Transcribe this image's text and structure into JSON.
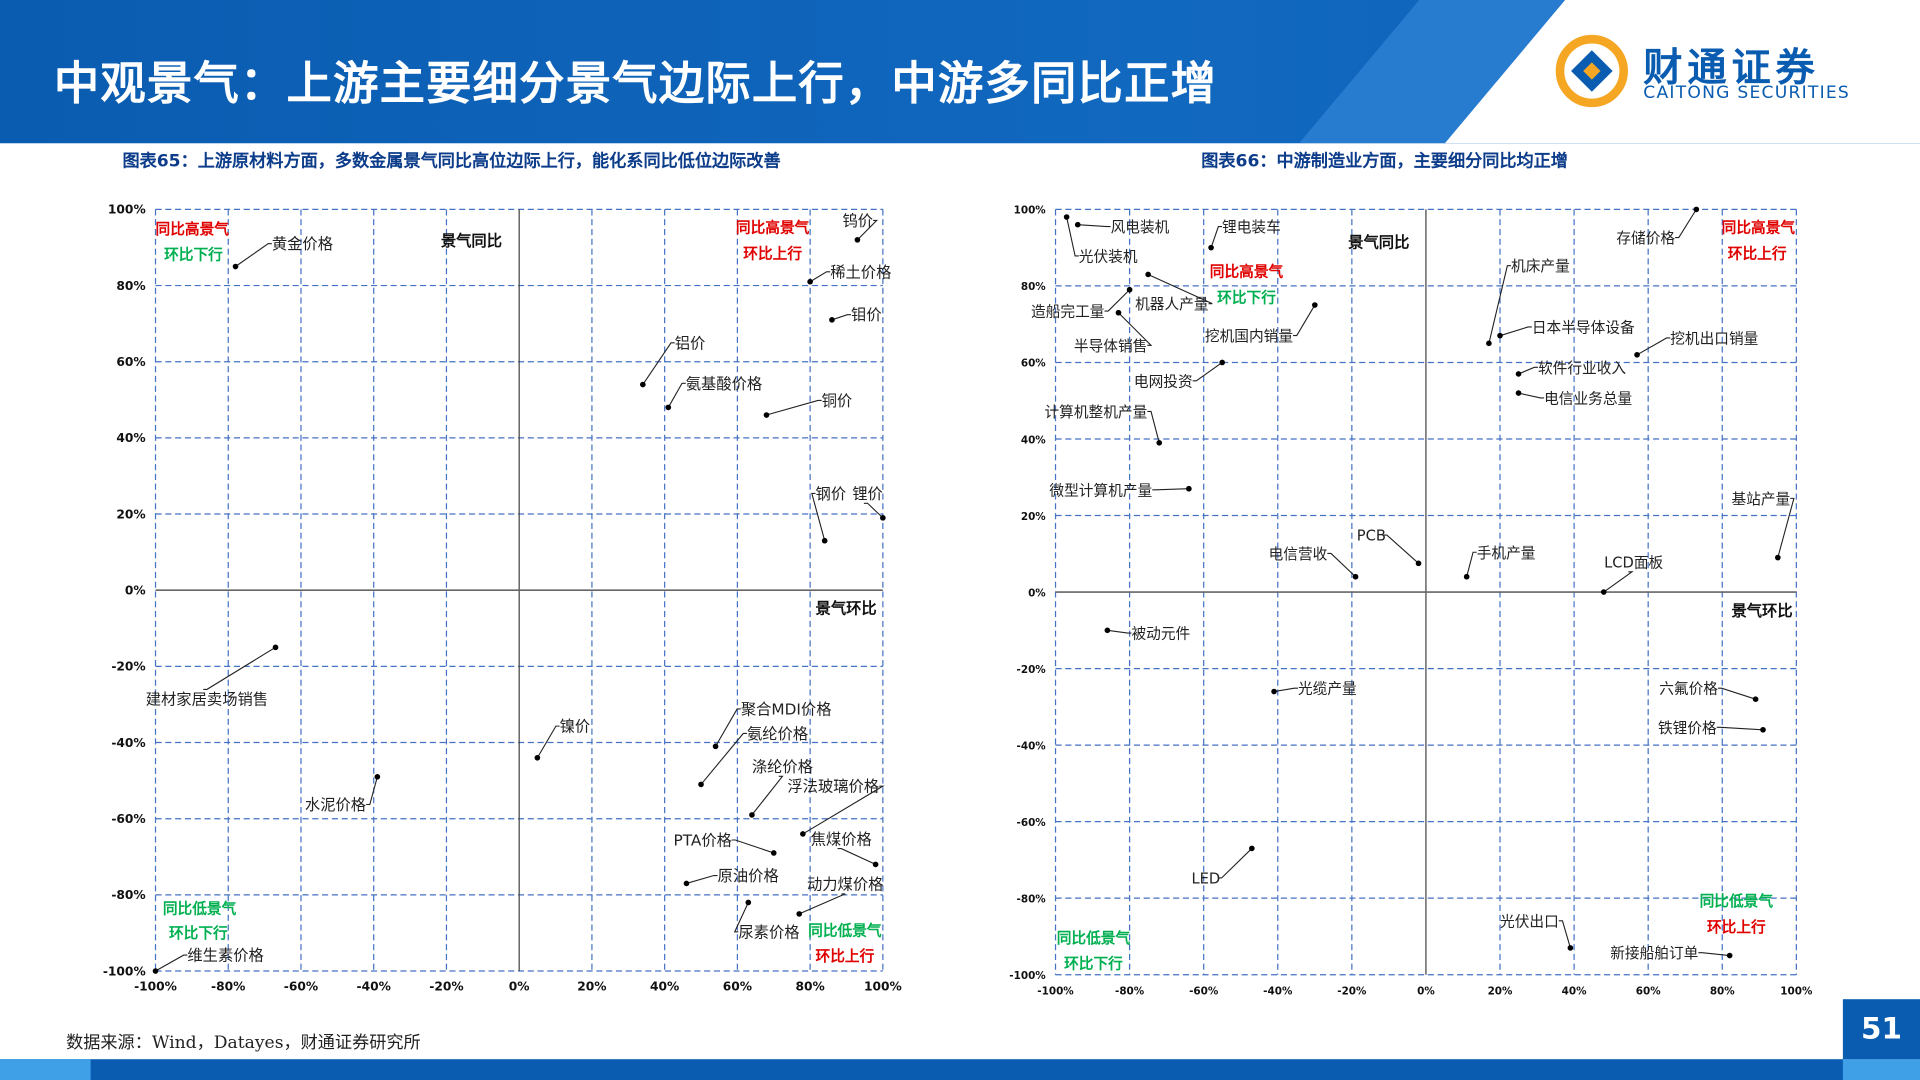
{
  "header": {
    "title": "中观景气：上游主要细分景气边际上行，中游多同比正增",
    "logo_cn": "财通证券",
    "logo_en": "CAITONG SECURITIES"
  },
  "colors": {
    "brand": "#0a5cb0",
    "grid": "#4472c4",
    "red": "#e00000",
    "green": "#00b050"
  },
  "source": "数据来源：Wind，Datayes，财通证券研究所",
  "page_number": "51",
  "chart_data": [
    {
      "type": "scatter",
      "title": "图表65：上游原材料方面，多数金属景气同比高位边际上行，能化系同比低位边际改善",
      "ylabel": "景气同比",
      "xlabel": "景气环比",
      "xlim": [
        -100,
        100
      ],
      "ylim": [
        -100,
        100
      ],
      "xticks": [
        "-100%",
        "-80%",
        "-60%",
        "-40%",
        "-20%",
        "0%",
        "20%",
        "40%",
        "60%",
        "80%",
        "100%"
      ],
      "yticks": [
        "100%",
        "80%",
        "60%",
        "40%",
        "20%",
        "0%",
        "-20%",
        "-40%",
        "-60%",
        "-80%",
        "-100%"
      ],
      "grid": true,
      "quadrants": {
        "top_left": [
          "同比高景气",
          "环比下行"
        ],
        "top_right": [
          "同比高景气",
          "环比上行"
        ],
        "bottom_left": [
          "同比低景气",
          "环比下行"
        ],
        "bottom_right": [
          "同比低景气",
          "环比上行"
        ]
      },
      "points": [
        {
          "label": "黄金价格",
          "x": -78,
          "y": 85
        },
        {
          "label": "钨价",
          "x": 93,
          "y": 92
        },
        {
          "label": "稀土价格",
          "x": 80,
          "y": 81
        },
        {
          "label": "钼价",
          "x": 86,
          "y": 71
        },
        {
          "label": "铝价",
          "x": 34,
          "y": 54
        },
        {
          "label": "氨基酸价格",
          "x": 41,
          "y": 48
        },
        {
          "label": "铜价",
          "x": 68,
          "y": 46
        },
        {
          "label": "钢价",
          "x": 84,
          "y": 13
        },
        {
          "label": "锂价",
          "x": 100,
          "y": 19
        },
        {
          "label": "建材家居卖场销售",
          "x": -67,
          "y": -15
        },
        {
          "label": "水泥价格",
          "x": -39,
          "y": -49
        },
        {
          "label": "镍价",
          "x": 5,
          "y": -44
        },
        {
          "label": "聚合MDI价格",
          "x": 54,
          "y": -41
        },
        {
          "label": "氨纶价格",
          "x": 50,
          "y": -51
        },
        {
          "label": "涤纶价格",
          "x": 64,
          "y": -59
        },
        {
          "label": "浮法玻璃价格",
          "x": 78,
          "y": -64
        },
        {
          "label": "焦煤价格",
          "x": 98,
          "y": -72
        },
        {
          "label": "PTA价格",
          "x": 70,
          "y": -69
        },
        {
          "label": "原油价格",
          "x": 46,
          "y": -77
        },
        {
          "label": "动力煤价格",
          "x": 77,
          "y": -85
        },
        {
          "label": "尿素价格",
          "x": 63,
          "y": -82
        },
        {
          "label": "维生素价格",
          "x": -100,
          "y": -100
        }
      ]
    },
    {
      "type": "scatter",
      "title": "图表66：中游制造业方面，主要细分同比均正增",
      "ylabel": "景气同比",
      "xlabel": "景气环比",
      "xlim": [
        -100,
        100
      ],
      "ylim": [
        -100,
        100
      ],
      "xticks": [
        "-100%",
        "-80%",
        "-60%",
        "-40%",
        "-20%",
        "0%",
        "20%",
        "40%",
        "60%",
        "80%",
        "100%"
      ],
      "yticks": [
        "100%",
        "80%",
        "60%",
        "40%",
        "20%",
        "0%",
        "-20%",
        "-40%",
        "-60%",
        "-80%",
        "-100%"
      ],
      "grid": true,
      "quadrants": {
        "top_left": [
          "同比高景气",
          "环比下行"
        ],
        "top_right": [
          "同比高景气",
          "环比上行"
        ],
        "bottom_left": [
          "同比低景气",
          "环比下行"
        ],
        "bottom_right": [
          "同比低景气",
          "环比上行"
        ]
      },
      "points": [
        {
          "label": "风电装机",
          "x": -94,
          "y": 96
        },
        {
          "label": "光伏装机",
          "x": -97,
          "y": 98
        },
        {
          "label": "锂电装车",
          "x": -58,
          "y": 90
        },
        {
          "label": "机器人产量",
          "x": -75,
          "y": 83
        },
        {
          "label": "造船完工量",
          "x": -80,
          "y": 79
        },
        {
          "label": "半导体销售",
          "x": -83,
          "y": 73
        },
        {
          "label": "挖机国内销量",
          "x": -30,
          "y": 75
        },
        {
          "label": "电网投资",
          "x": -55,
          "y": 60
        },
        {
          "label": "计算机整机产量",
          "x": -72,
          "y": 39
        },
        {
          "label": "微型计算机产量",
          "x": -64,
          "y": 27
        },
        {
          "label": "存储价格",
          "x": 73,
          "y": 100
        },
        {
          "label": "机床产量",
          "x": 17,
          "y": 65
        },
        {
          "label": "日本半导体设备",
          "x": 20,
          "y": 67
        },
        {
          "label": "挖机出口销量",
          "x": 57,
          "y": 62
        },
        {
          "label": "软件行业收入",
          "x": 25,
          "y": 57
        },
        {
          "label": "电信业务总量",
          "x": 25,
          "y": 52
        },
        {
          "label": "基站产量",
          "x": 95,
          "y": 9
        },
        {
          "label": "PCB",
          "x": -2,
          "y": 7.5
        },
        {
          "label": "电信营收",
          "x": -19,
          "y": 4
        },
        {
          "label": "手机产量",
          "x": 11,
          "y": 4
        },
        {
          "label": "LCD面板",
          "x": 48,
          "y": 0
        },
        {
          "label": "被动元件",
          "x": -86,
          "y": -10
        },
        {
          "label": "光缆产量",
          "x": -41,
          "y": -26
        },
        {
          "label": "六氟价格",
          "x": 89,
          "y": -28
        },
        {
          "label": "铁锂价格",
          "x": 91,
          "y": -36
        },
        {
          "label": "LED",
          "x": -47,
          "y": -67
        },
        {
          "label": "光伏出口",
          "x": 39,
          "y": -93
        },
        {
          "label": "新接船舶订单",
          "x": 82,
          "y": -95
        }
      ]
    }
  ]
}
